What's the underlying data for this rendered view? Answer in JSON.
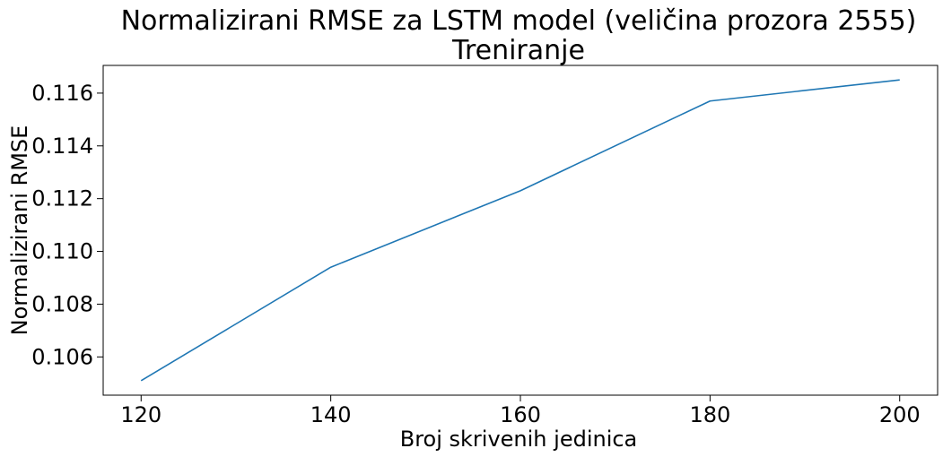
{
  "chart_data": {
    "type": "line",
    "title": "Normalizirani RMSE za LSTM model (veličina prozora 2555)",
    "subtitle": "Treniranje",
    "xlabel": "Broj skrivenih jedinica",
    "ylabel": "Normalizirani RMSE",
    "x": [
      120,
      140,
      160,
      180,
      200
    ],
    "series": [
      {
        "values": [
          0.1051,
          0.1094,
          0.1123,
          0.1157,
          0.1165
        ],
        "color": "#1f77b4"
      }
    ],
    "xticks": [
      120,
      140,
      160,
      180,
      200
    ],
    "xtick_labels": [
      "120",
      "140",
      "160",
      "180",
      "200"
    ],
    "yticks": [
      0.106,
      0.108,
      0.11,
      0.112,
      0.114,
      0.116
    ],
    "ytick_labels": [
      "0.106",
      "0.108",
      "0.110",
      "0.112",
      "0.114",
      "0.116"
    ],
    "xlim": [
      116,
      204
    ],
    "ylim": [
      0.10455,
      0.11705
    ],
    "grid": false,
    "legend": false
  }
}
